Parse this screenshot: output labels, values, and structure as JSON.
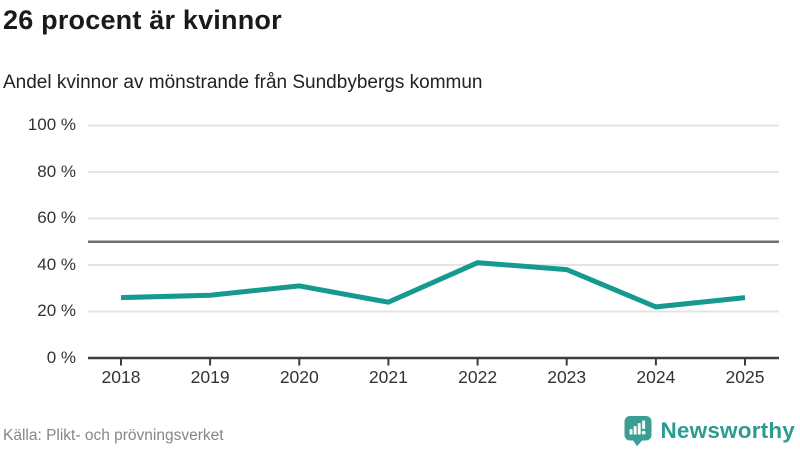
{
  "header": {
    "title": "26 procent är kvinnor",
    "subtitle": "Andel kvinnor av mönstrande från Sundbybergs kommun"
  },
  "chart_data": {
    "type": "line",
    "title": "26 procent är kvinnor",
    "subtitle": "Andel kvinnor av mönstrande från Sundbybergs kommun",
    "x": [
      2018,
      2019,
      2020,
      2021,
      2022,
      2023,
      2024,
      2025
    ],
    "xtick_labels": [
      "2018",
      "2019",
      "2020",
      "2021",
      "2022",
      "2023",
      "2024",
      "2025"
    ],
    "series": [
      {
        "name": "Andel kvinnor",
        "values": [
          26,
          27,
          31,
          24,
          41,
          38,
          22,
          26
        ]
      }
    ],
    "unit": "%",
    "ylim": [
      0,
      100
    ],
    "yticks": [
      0,
      20,
      40,
      60,
      80,
      100
    ],
    "ytick_labels": [
      "0 %",
      "20 %",
      "40 %",
      "60 %",
      "80 %",
      "100 %"
    ],
    "reference_line": {
      "value": 50,
      "color": "#707070"
    },
    "grid": true,
    "grid_color": "#e4e4e4",
    "axis_color": "#3d3d3d",
    "line_color": "#169a90",
    "legend_position": "none"
  },
  "footer": {
    "source": "Källa: Plikt- och prövningsverket",
    "brand": {
      "name": "Newsworthy",
      "color": "#2b9c92",
      "icon": "newsworthy-bar-chart-bubble-icon",
      "icon_color": "#3a9e94"
    }
  }
}
